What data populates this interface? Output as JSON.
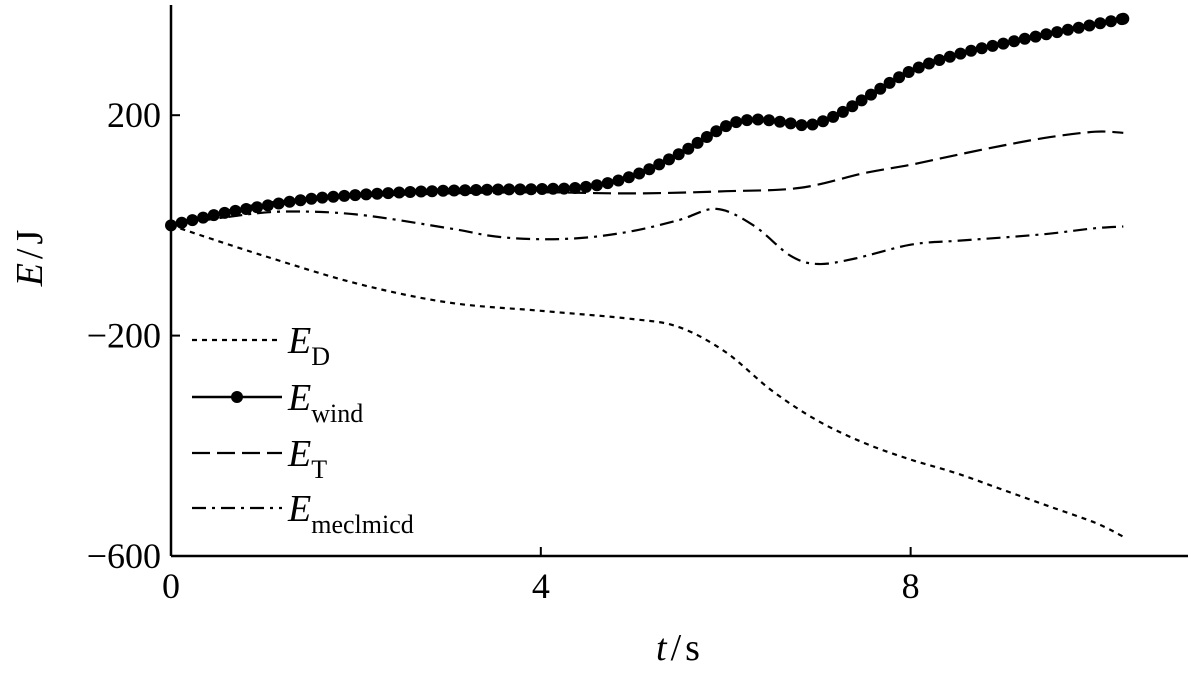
{
  "chart_data": {
    "type": "line",
    "title": "",
    "xlabel": {
      "var": "t",
      "unit": "s"
    },
    "ylabel": {
      "var": "E",
      "unit": "J"
    },
    "xlim": [
      0,
      11
    ],
    "ylim": [
      -600,
      400
    ],
    "x_ticks": [
      0,
      4,
      8
    ],
    "x_tick_labels": [
      "0",
      "4",
      "8"
    ],
    "y_ticks": [
      200,
      -200,
      -600
    ],
    "y_tick_labels": [
      "200",
      "−200",
      "−600"
    ],
    "grid": false,
    "legend_position": "bottom-left",
    "series": [
      {
        "name": "E_D",
        "label_main": "E",
        "label_sub": "D",
        "style": "dotted",
        "x": [
          0,
          1,
          2,
          3,
          4,
          5,
          5.5,
          6,
          6.5,
          7,
          7.5,
          8,
          8.5,
          9,
          9.5,
          10,
          10.3
        ],
        "y": [
          0,
          -55,
          -105,
          -140,
          -155,
          -170,
          -185,
          -230,
          -300,
          -355,
          -395,
          -425,
          -450,
          -480,
          -510,
          -540,
          -565
        ]
      },
      {
        "name": "E_wind",
        "label_main": "E",
        "label_sub": "wind",
        "style": "solid-markers",
        "x": [
          0,
          0.5,
          1,
          1.5,
          2,
          2.5,
          3,
          3.5,
          4,
          4.5,
          5,
          5.5,
          6,
          6.3,
          6.6,
          6.9,
          7.2,
          7.5,
          8,
          8.5,
          9,
          9.5,
          10,
          10.3
        ],
        "y": [
          0,
          20,
          35,
          48,
          55,
          60,
          63,
          65,
          66,
          70,
          90,
          130,
          180,
          192,
          188,
          182,
          200,
          230,
          280,
          310,
          330,
          348,
          365,
          375
        ]
      },
      {
        "name": "E_T",
        "label_main": "E",
        "label_sub": "T",
        "style": "dashed",
        "x": [
          0,
          1,
          2,
          3,
          4,
          5,
          6,
          6.8,
          7.5,
          8,
          8.5,
          9,
          9.5,
          10,
          10.3
        ],
        "y": [
          0,
          40,
          52,
          58,
          60,
          58,
          62,
          68,
          95,
          110,
          128,
          145,
          160,
          170,
          168
        ]
      },
      {
        "name": "E_meclmicd",
        "label_main": "E",
        "label_sub": "meclmicd",
        "style": "dash-dot",
        "x": [
          0,
          0.6,
          1.2,
          2,
          3,
          3.5,
          4,
          4.5,
          5,
          5.5,
          5.9,
          6.3,
          6.7,
          7,
          7.4,
          8,
          8.5,
          9,
          9.5,
          10,
          10.3
        ],
        "y": [
          0,
          15,
          25,
          20,
          -5,
          -20,
          -25,
          -22,
          -10,
          10,
          30,
          0,
          -55,
          -70,
          -60,
          -35,
          -28,
          -22,
          -15,
          -5,
          -2
        ]
      }
    ]
  }
}
